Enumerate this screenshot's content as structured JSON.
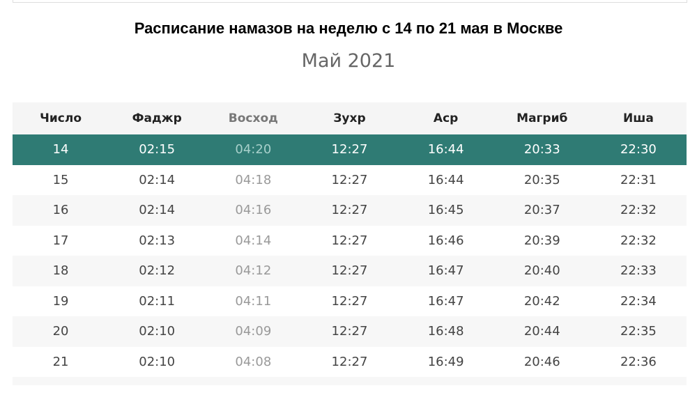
{
  "header": {
    "title": "Расписание намазов на неделю с 14 по 21 мая в Москве",
    "subtitle": "Май 2021"
  },
  "table": {
    "columns": [
      "Число",
      "Фаджр",
      "Восход",
      "Зухр",
      "Аср",
      "Магриб",
      "Иша"
    ],
    "rows": [
      [
        "14",
        "02:15",
        "04:20",
        "12:27",
        "16:44",
        "20:33",
        "22:30"
      ],
      [
        "15",
        "02:14",
        "04:18",
        "12:27",
        "16:44",
        "20:35",
        "22:31"
      ],
      [
        "16",
        "02:14",
        "04:16",
        "12:27",
        "16:45",
        "20:37",
        "22:32"
      ],
      [
        "17",
        "02:13",
        "04:14",
        "12:27",
        "16:46",
        "20:39",
        "22:32"
      ],
      [
        "18",
        "02:12",
        "04:12",
        "12:27",
        "16:47",
        "20:40",
        "22:33"
      ],
      [
        "19",
        "02:11",
        "04:11",
        "12:27",
        "16:47",
        "20:42",
        "22:34"
      ],
      [
        "20",
        "02:10",
        "04:09",
        "12:27",
        "16:48",
        "20:44",
        "22:35"
      ],
      [
        "21",
        "02:10",
        "04:08",
        "12:27",
        "16:49",
        "20:46",
        "22:36"
      ]
    ]
  }
}
